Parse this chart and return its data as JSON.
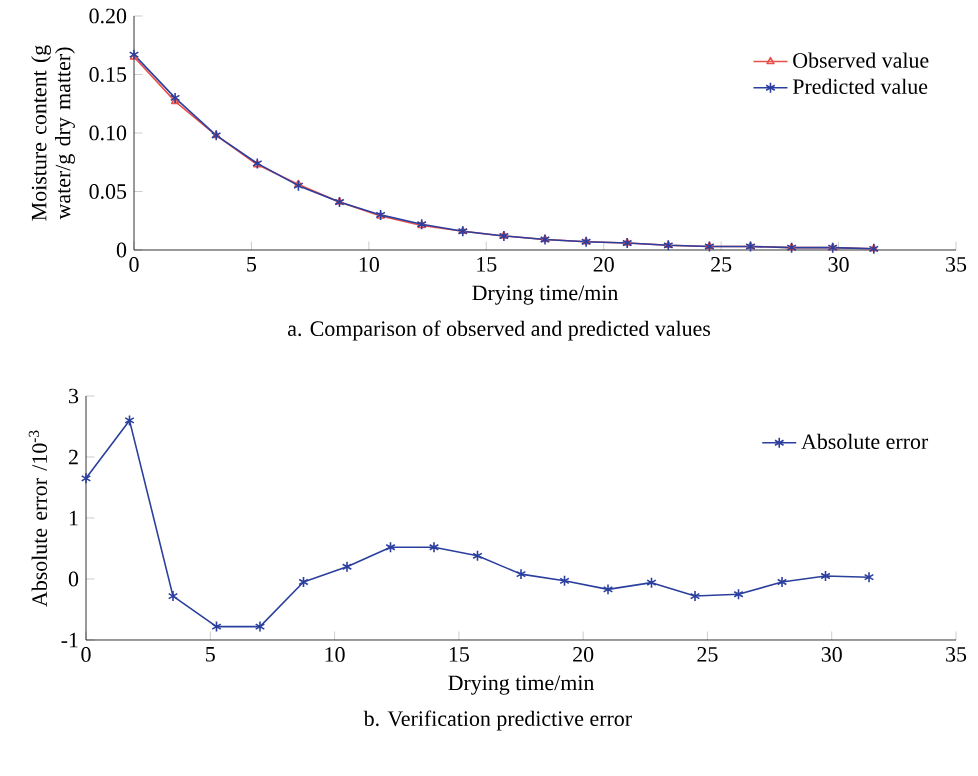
{
  "chart_data": [
    {
      "type": "line",
      "xlabel": "Drying time/min",
      "ylabel": "Moisture content (g water/g dry matter)",
      "x": [
        0,
        1.75,
        3.5,
        5.25,
        7,
        8.75,
        10.5,
        12.25,
        14,
        15.75,
        17.5,
        19.25,
        21,
        22.75,
        24.5,
        26.25,
        28,
        29.75,
        31.5
      ],
      "series": [
        {
          "name": "Observed value",
          "color": "#e8504a",
          "marker": "triangle",
          "values": [
            0.165,
            0.127,
            0.098,
            0.073,
            0.056,
            0.041,
            0.029,
            0.021,
            0.016,
            0.012,
            0.009,
            0.007,
            0.006,
            0.004,
            0.003,
            0.003,
            0.002,
            0.002,
            0.001
          ]
        },
        {
          "name": "Predicted value",
          "color": "#2b3f9e",
          "marker": "cross",
          "values": [
            0.167,
            0.13,
            0.098,
            0.074,
            0.055,
            0.041,
            0.03,
            0.022,
            0.016,
            0.012,
            0.009,
            0.007,
            0.006,
            0.004,
            0.003,
            0.003,
            0.002,
            0.002,
            0.001
          ]
        }
      ],
      "xlim": [
        0,
        35
      ],
      "xticks": [
        0,
        5,
        10,
        15,
        20,
        25,
        30,
        35
      ],
      "ylim": [
        0,
        0.2
      ],
      "yticks": [
        0,
        0.05,
        {
          "value": 0.1,
          "label": "0.10"
        },
        0.15,
        {
          "value": 0.2,
          "label": "0.20"
        }
      ],
      "legend": "top right",
      "grid": false,
      "line_style": "solid",
      "annotations": [
        "a. Comparison of observed and predicted values"
      ]
    },
    {
      "type": "line",
      "xlabel": "Drying time/min",
      "ylabel": "Absolute error /10$^{-3}$",
      "x": [
        0,
        1.75,
        3.5,
        5.25,
        7,
        8.75,
        10.5,
        12.25,
        14,
        15.75,
        17.5,
        19.25,
        21,
        22.75,
        24.5,
        26.25,
        28,
        29.75,
        31.5
      ],
      "series": [
        {
          "name": "Absolute error",
          "color": "#2b3f9e",
          "marker": "cross",
          "values": [
            1.65,
            2.6,
            -0.28,
            -0.78,
            -0.78,
            -0.05,
            0.2,
            0.52,
            0.52,
            0.38,
            0.08,
            -0.03,
            -0.17,
            -0.06,
            -0.28,
            -0.25,
            -0.05,
            0.05,
            0.03
          ]
        }
      ],
      "xlim": [
        0,
        35
      ],
      "xticks": [
        0,
        5,
        10,
        15,
        20,
        25,
        30,
        35
      ],
      "ylim": [
        -1,
        3
      ],
      "yticks": [
        -1,
        0,
        1,
        2,
        3
      ],
      "legend": "top right",
      "grid": false,
      "line_style": "solid",
      "annotations": [
        "b. Verification predictive error"
      ]
    }
  ]
}
